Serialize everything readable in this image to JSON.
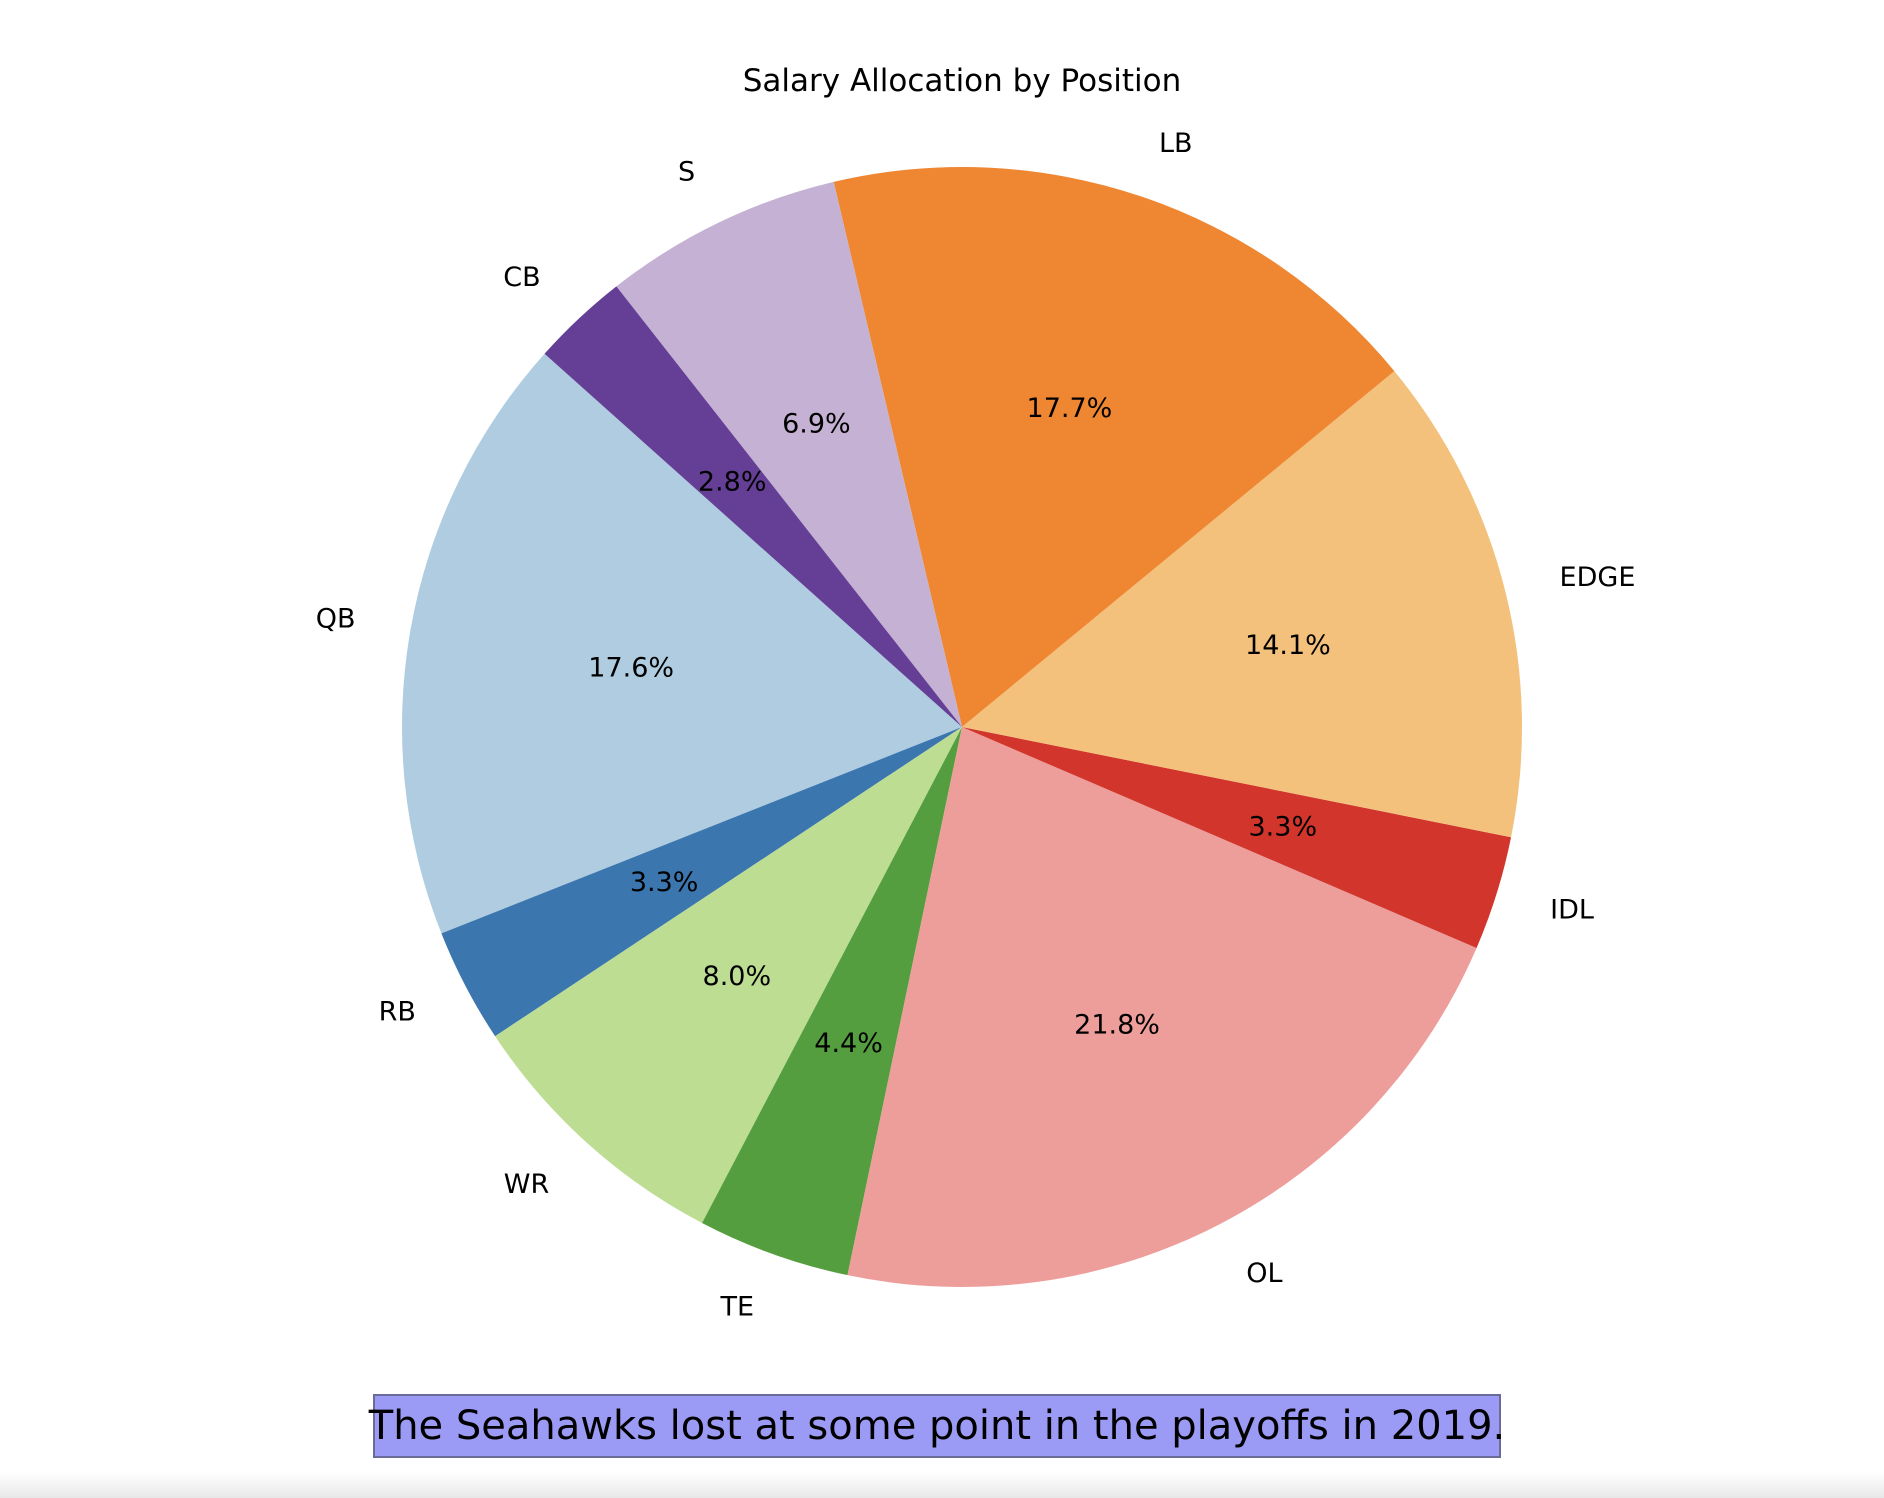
{
  "chart_data": {
    "type": "pie",
    "title": "Salary Allocation by Position",
    "labels": [
      "QB",
      "RB",
      "WR",
      "TE",
      "OL",
      "IDL",
      "EDGE",
      "LB",
      "S",
      "CB"
    ],
    "values": [
      17.6,
      3.3,
      8.0,
      4.4,
      21.8,
      3.3,
      14.1,
      17.7,
      6.9,
      2.8
    ],
    "pct_labels": [
      "17.6%",
      "3.3%",
      "8.0%",
      "4.4%",
      "21.8%",
      "3.3%",
      "14.1%",
      "17.7%",
      "6.9%",
      "2.8%"
    ],
    "colors": [
      "#afcce1",
      "#3b76af",
      "#bddd93",
      "#559e3f",
      "#ed9e9a",
      "#d1352b",
      "#f3c17b",
      "#ef8632",
      "#c5b1d4",
      "#643f95"
    ],
    "start_angle_deg": 138.2,
    "direction": "counterclockwise"
  },
  "caption": {
    "text": "The Seahawks lost at some point in the playoffs in 2019."
  }
}
